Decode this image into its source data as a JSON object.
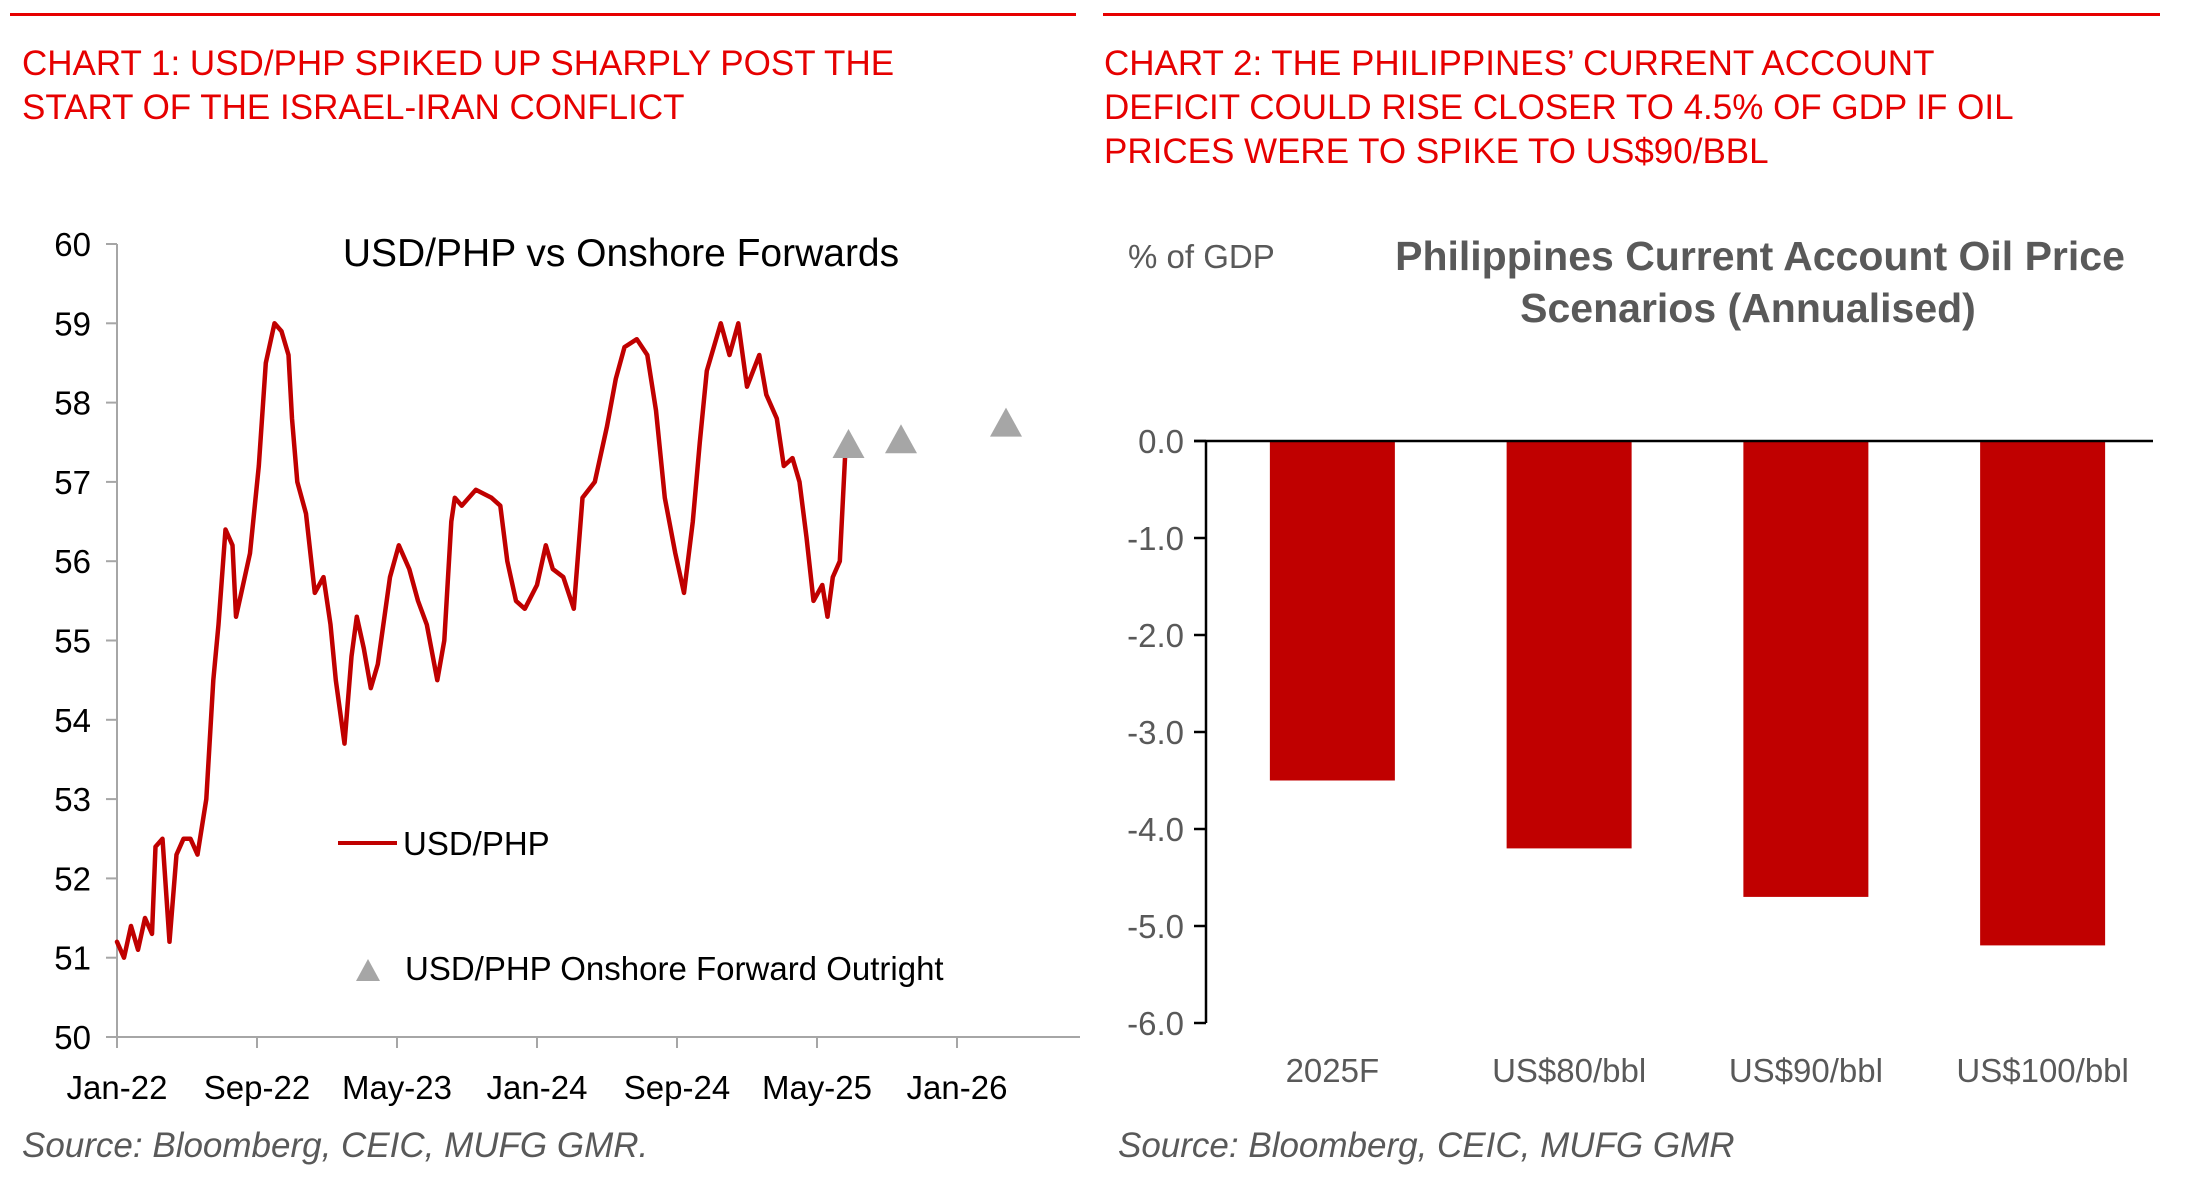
{
  "chart1": {
    "heading_lines": [
      "CHART 1: USD/PHP SPIKED UP SHARPLY POST THE",
      "START OF THE ISRAEL-IRAN CONFLICT"
    ],
    "source": "Source: Bloomberg, CEIC, MUFG GMR."
  },
  "chart2": {
    "heading_lines": [
      "CHART 2: THE PHILIPPINES’ CURRENT ACCOUNT",
      "DEFICIT COULD RISE CLOSER TO 4.5% OF GDP IF OIL",
      "PRICES WERE TO SPIKE TO US$90/BBL"
    ],
    "source": "Source: Bloomberg, CEIC, MUFG GMR"
  },
  "colors": {
    "heading": "#E60000",
    "line": "#C00000",
    "bar": "#C00000",
    "triangle": "#A6A6A6",
    "axis_text_dark": "#000000",
    "axis_text_grey": "#595959"
  },
  "chart_data": [
    {
      "type": "line",
      "title": "USD/PHP vs Onshore Forwards",
      "xlabel": "",
      "ylabel": "",
      "ylim": [
        50,
        60
      ],
      "yticks": [
        "50",
        "51",
        "52",
        "53",
        "54",
        "55",
        "56",
        "57",
        "58",
        "59",
        "60"
      ],
      "xticks": [
        "Jan-22",
        "Sep-22",
        "May-23",
        "Jan-24",
        "Sep-24",
        "May-25",
        "Jan-26"
      ],
      "x_unit": "months since Jan-22",
      "xlim": [
        0,
        55
      ],
      "grid": false,
      "legend_position": "lower-center",
      "series": [
        {
          "name": "USD/PHP",
          "style": "line",
          "x": [
            0,
            0.4,
            0.8,
            1.2,
            1.6,
            2.0,
            2.2,
            2.6,
            3.0,
            3.4,
            3.8,
            4.2,
            4.6,
            5.1,
            5.5,
            5.8,
            6.2,
            6.6,
            6.8,
            7.1,
            7.6,
            8.1,
            8.5,
            9.0,
            9.4,
            9.8,
            10.0,
            10.3,
            10.8,
            11.3,
            11.8,
            12.2,
            12.5,
            13.0,
            13.4,
            13.7,
            14.1,
            14.5,
            14.9,
            15.6,
            16.1,
            16.7,
            17.2,
            17.7,
            18.3,
            18.7,
            19.1,
            19.3,
            19.7,
            20.5,
            21.4,
            21.9,
            22.3,
            22.8,
            23.3,
            24.0,
            24.5,
            24.9,
            25.5,
            26.1,
            26.6,
            27.3,
            28.0,
            28.5,
            29.0,
            29.7,
            30.3,
            30.8,
            31.3,
            31.9,
            32.4,
            32.9,
            33.3,
            33.7,
            34.1,
            34.5,
            35.0,
            35.5,
            36.0,
            36.7,
            37.1,
            37.7,
            38.1,
            38.6,
            39.0,
            39.4,
            39.8,
            40.3,
            40.6,
            40.9,
            41.3,
            41.6
          ],
          "y": [
            51.2,
            51.0,
            51.4,
            51.1,
            51.5,
            51.3,
            52.4,
            52.5,
            51.2,
            52.3,
            52.5,
            52.5,
            52.3,
            53.0,
            54.5,
            55.2,
            56.4,
            56.2,
            55.3,
            55.6,
            56.1,
            57.2,
            58.5,
            59.0,
            58.9,
            58.6,
            57.8,
            57.0,
            56.6,
            55.6,
            55.8,
            55.2,
            54.5,
            53.7,
            54.8,
            55.3,
            54.9,
            54.4,
            54.7,
            55.8,
            56.2,
            55.9,
            55.5,
            55.2,
            54.5,
            55.0,
            56.5,
            56.8,
            56.7,
            56.9,
            56.8,
            56.7,
            56.0,
            55.5,
            55.4,
            55.7,
            56.2,
            55.9,
            55.8,
            55.4,
            56.8,
            57.0,
            57.7,
            58.3,
            58.7,
            58.8,
            58.6,
            57.9,
            56.8,
            56.1,
            55.6,
            56.5,
            57.5,
            58.4,
            58.7,
            59.0,
            58.6,
            59.0,
            58.2,
            58.6,
            58.1,
            57.8,
            57.2,
            57.3,
            57.0,
            56.3,
            55.5,
            55.7,
            55.3,
            55.8,
            56.0,
            57.3
          ]
        },
        {
          "name": "USD/PHP Onshore Forward Outright",
          "style": "triangle-marker",
          "x": [
            41.8,
            44.8,
            50.8
          ],
          "y": [
            57.44,
            57.5,
            57.71
          ]
        }
      ]
    },
    {
      "type": "bar",
      "title": "Philippines Current Account Oil Price Scenarios (Annualised)",
      "title_lines": [
        "Philippines Current Account Oil Price",
        "Scenarios (Annualised)"
      ],
      "ylabel": "% of GDP",
      "xlabel": "",
      "ylim": [
        -6.0,
        0.0
      ],
      "yticks": [
        "0.0",
        "-1.0",
        "-2.0",
        "-3.0",
        "-4.0",
        "-5.0",
        "-6.0"
      ],
      "grid": false,
      "categories": [
        "2025F",
        "US$80/bbl",
        "US$90/bbl",
        "US$100/bbl"
      ],
      "values": [
        -3.5,
        -4.2,
        -4.7,
        -5.2
      ]
    }
  ]
}
